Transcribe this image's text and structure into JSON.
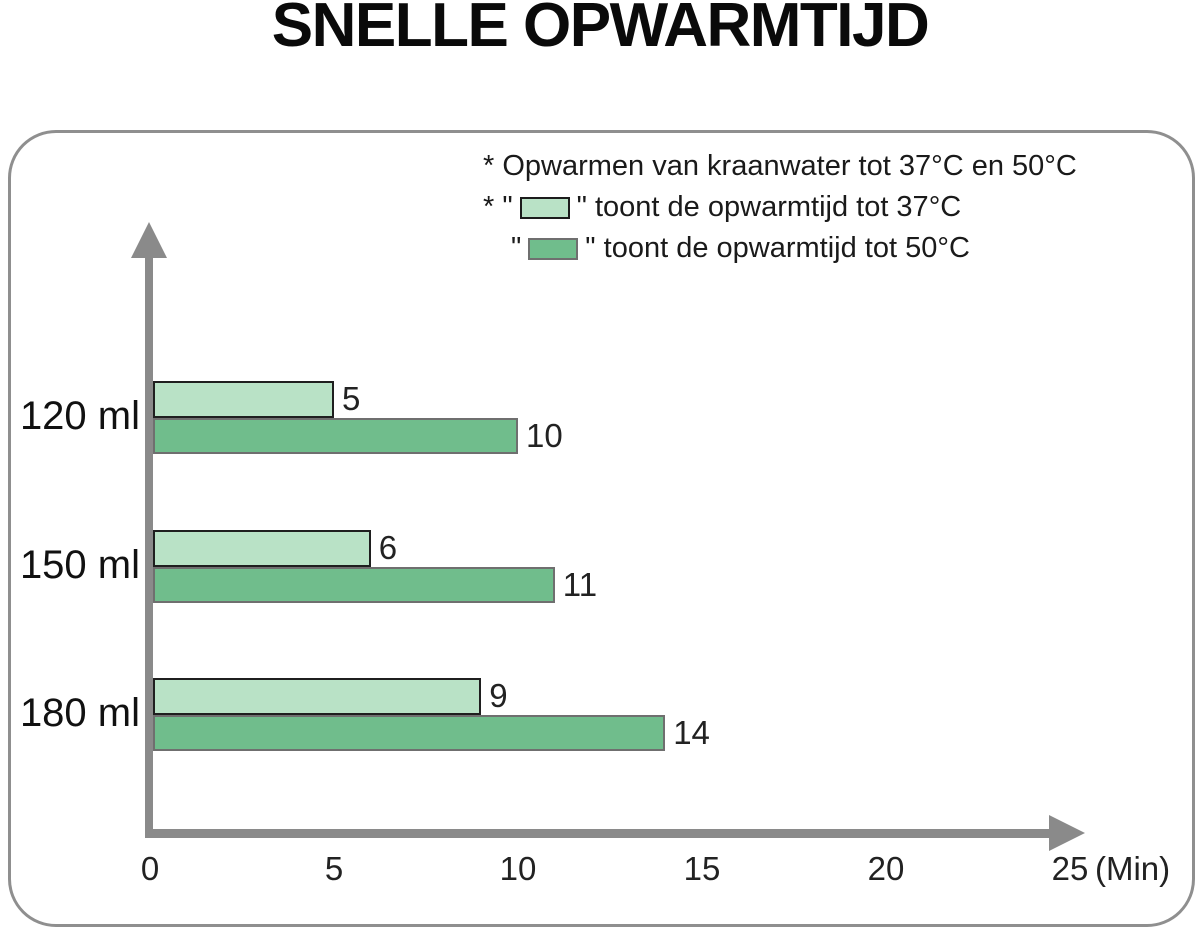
{
  "title": "SNELLE OPWARMTIJD",
  "legend": {
    "note": "* Opwarmen van kraanwater tot 37°C en 50°C",
    "items": [
      {
        "pre": "* \"",
        "post": "\" toont de opwarmtijd tot 37°C",
        "swatch": "light-green-swatch"
      },
      {
        "pre": "\"",
        "post": "\" toont de opwarmtijd tot 50°C",
        "swatch": "medium-green-swatch"
      }
    ]
  },
  "chart_data": {
    "type": "bar",
    "orientation": "horizontal",
    "title": "SNELLE OPWARMTIJD",
    "categories": [
      "120 ml",
      "150 ml",
      "180 ml"
    ],
    "series": [
      {
        "name": "opwarmtijd tot 37°C",
        "values": [
          5,
          6,
          9
        ],
        "color": "#b9e2c6",
        "border": "#1f1f1f"
      },
      {
        "name": "opwarmtijd tot 50°C",
        "values": [
          10,
          11,
          14
        ],
        "color": "#70bd8c",
        "border": "#6f6f6f"
      }
    ],
    "value_labels": true,
    "xlabel": "(Min)",
    "xticks": [
      0,
      5,
      10,
      15,
      20,
      25
    ],
    "xlim": [
      0,
      25
    ],
    "grid": false,
    "legend_position": "top-right",
    "axis_color": "#8a8a8a",
    "panel_border_color": "#8f8f8f"
  }
}
